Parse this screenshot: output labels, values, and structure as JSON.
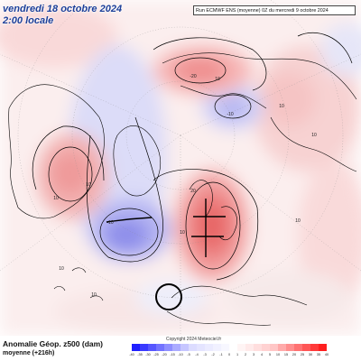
{
  "header": {
    "date_line": "vendredi 18 octobre 2024",
    "time_line": "2:00 locale",
    "run_info": "Run ECMWF ENS (moyenne) 0Z du mercredi 9 octobre 2024"
  },
  "footer": {
    "variable": "Anomalie Géop. z500 (dam)",
    "subtitle": "moyenne   (+216h)",
    "copyright": "Copyright 2024 Meteociel.fr"
  },
  "legend": {
    "ticks": [
      "-40",
      "-35",
      "-30",
      "-25",
      "-20",
      "-15",
      "-10",
      "-5",
      "-4",
      "-3",
      "-2",
      "-1",
      "0",
      "1",
      "2",
      "3",
      "4",
      "5",
      "10",
      "15",
      "20",
      "25",
      "30",
      "35",
      "40"
    ],
    "colors": [
      "#1f1fff",
      "#3a3aff",
      "#5656ff",
      "#7373ff",
      "#8f8fff",
      "#ababff",
      "#c6c6ff",
      "#dcdcff",
      "#e4e4ff",
      "#ebebff",
      "#f1f1ff",
      "#f7f7ff",
      "#ffffff",
      "#fff4f4",
      "#ffeaea",
      "#ffdede",
      "#ffd2d2",
      "#ffc6c6",
      "#ffaaaa",
      "#ff8e8e",
      "#ff7272",
      "#ff5656",
      "#ff3a3a",
      "#ff1f1f"
    ]
  },
  "contour_labels": [
    "-20",
    "-10",
    "10",
    "10",
    "20",
    "-10",
    "10",
    "10",
    "10",
    "10",
    "10",
    "10",
    "10"
  ],
  "colors": {
    "title": "#1d3f99",
    "positive_anomaly": "#f28a8a",
    "negative_anomaly": "#8f8fe6",
    "coastline": "#000000"
  }
}
